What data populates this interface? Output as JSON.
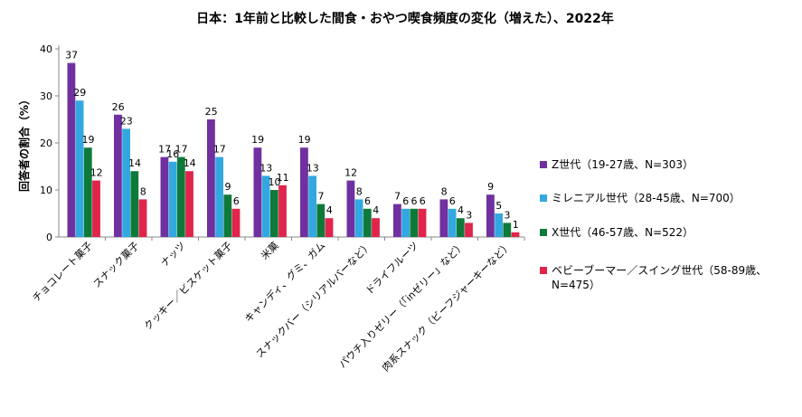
{
  "chart_data": {
    "type": "bar",
    "title": "日本：1年前と比較した間食・おやつ喫食頻度の変化（増えた）、2022年",
    "xlabel": "",
    "ylabel": "回答者の割合（%）",
    "ylim": [
      0,
      40
    ],
    "yticks": [
      0,
      10,
      20,
      30,
      40
    ],
    "grid": false,
    "legend_position": "right",
    "categories": [
      "チョコレート菓子",
      "スナック菓子",
      "ナッツ",
      "クッキー／ビスケット菓子",
      "米菓",
      "キャンディ、グミ、ガム",
      "スナックバー（シリアルバーなど）",
      "ドライフルーツ",
      "パウチ入りゼリー（「inゼリー」など）",
      "肉系スナック（ビーフジャーキーなど）"
    ],
    "series": [
      {
        "name": "Z世代（19-27歳、N=303）",
        "color": "#7030A0",
        "values": [
          37,
          26,
          17,
          25,
          19,
          19,
          12,
          7,
          8,
          9
        ]
      },
      {
        "name": "ミレニアル世代（28-45歳、N=700）",
        "color": "#33A8E0",
        "values": [
          29,
          23,
          16,
          17,
          13,
          13,
          8,
          6,
          6,
          5
        ]
      },
      {
        "name": "X世代（46-57歳、N=522）",
        "color": "#0E7A3A",
        "values": [
          19,
          14,
          17,
          9,
          10,
          7,
          6,
          6,
          4,
          3
        ]
      },
      {
        "name": "ベビーブーマー／スイング世代（58-89歳、N=475）",
        "color": "#E0244B",
        "values": [
          12,
          8,
          14,
          6,
          11,
          4,
          4,
          6,
          3,
          1
        ]
      }
    ]
  }
}
